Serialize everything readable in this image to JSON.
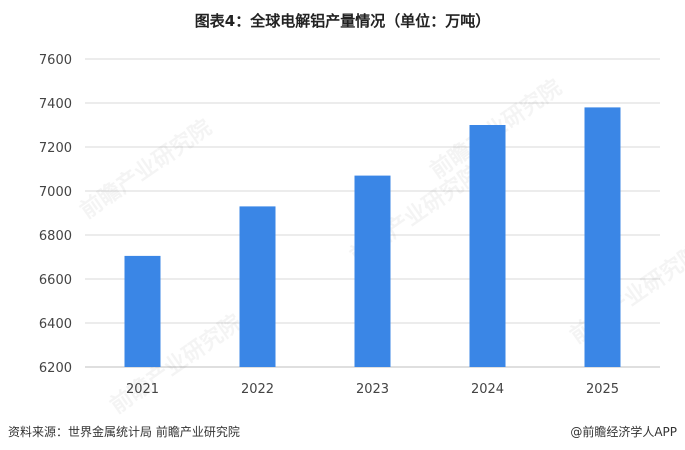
{
  "header": {
    "title": "图表4：全球电解铝产量情况（单位：万吨）"
  },
  "footer": {
    "source": "资料来源：世界金属统计局  前瞻产业研究院",
    "brand": "@前瞻经济学人APP"
  },
  "watermark": {
    "text": "前瞻产业研究院"
  },
  "chart_data": {
    "type": "bar",
    "title": "图表4：全球电解铝产量情况（单位：万吨）",
    "categories": [
      "2021",
      "2022",
      "2023",
      "2024",
      "2025"
    ],
    "values": [
      6705,
      6930,
      7070,
      7300,
      7380
    ],
    "ylim": [
      6200,
      7600
    ],
    "yticks": [
      6200,
      6400,
      6600,
      6800,
      7000,
      7200,
      7400,
      7600
    ],
    "xlabel": "",
    "ylabel": "",
    "grid": true,
    "bar_color": "#3a86e6",
    "grid_color": "#d9d9d9"
  }
}
